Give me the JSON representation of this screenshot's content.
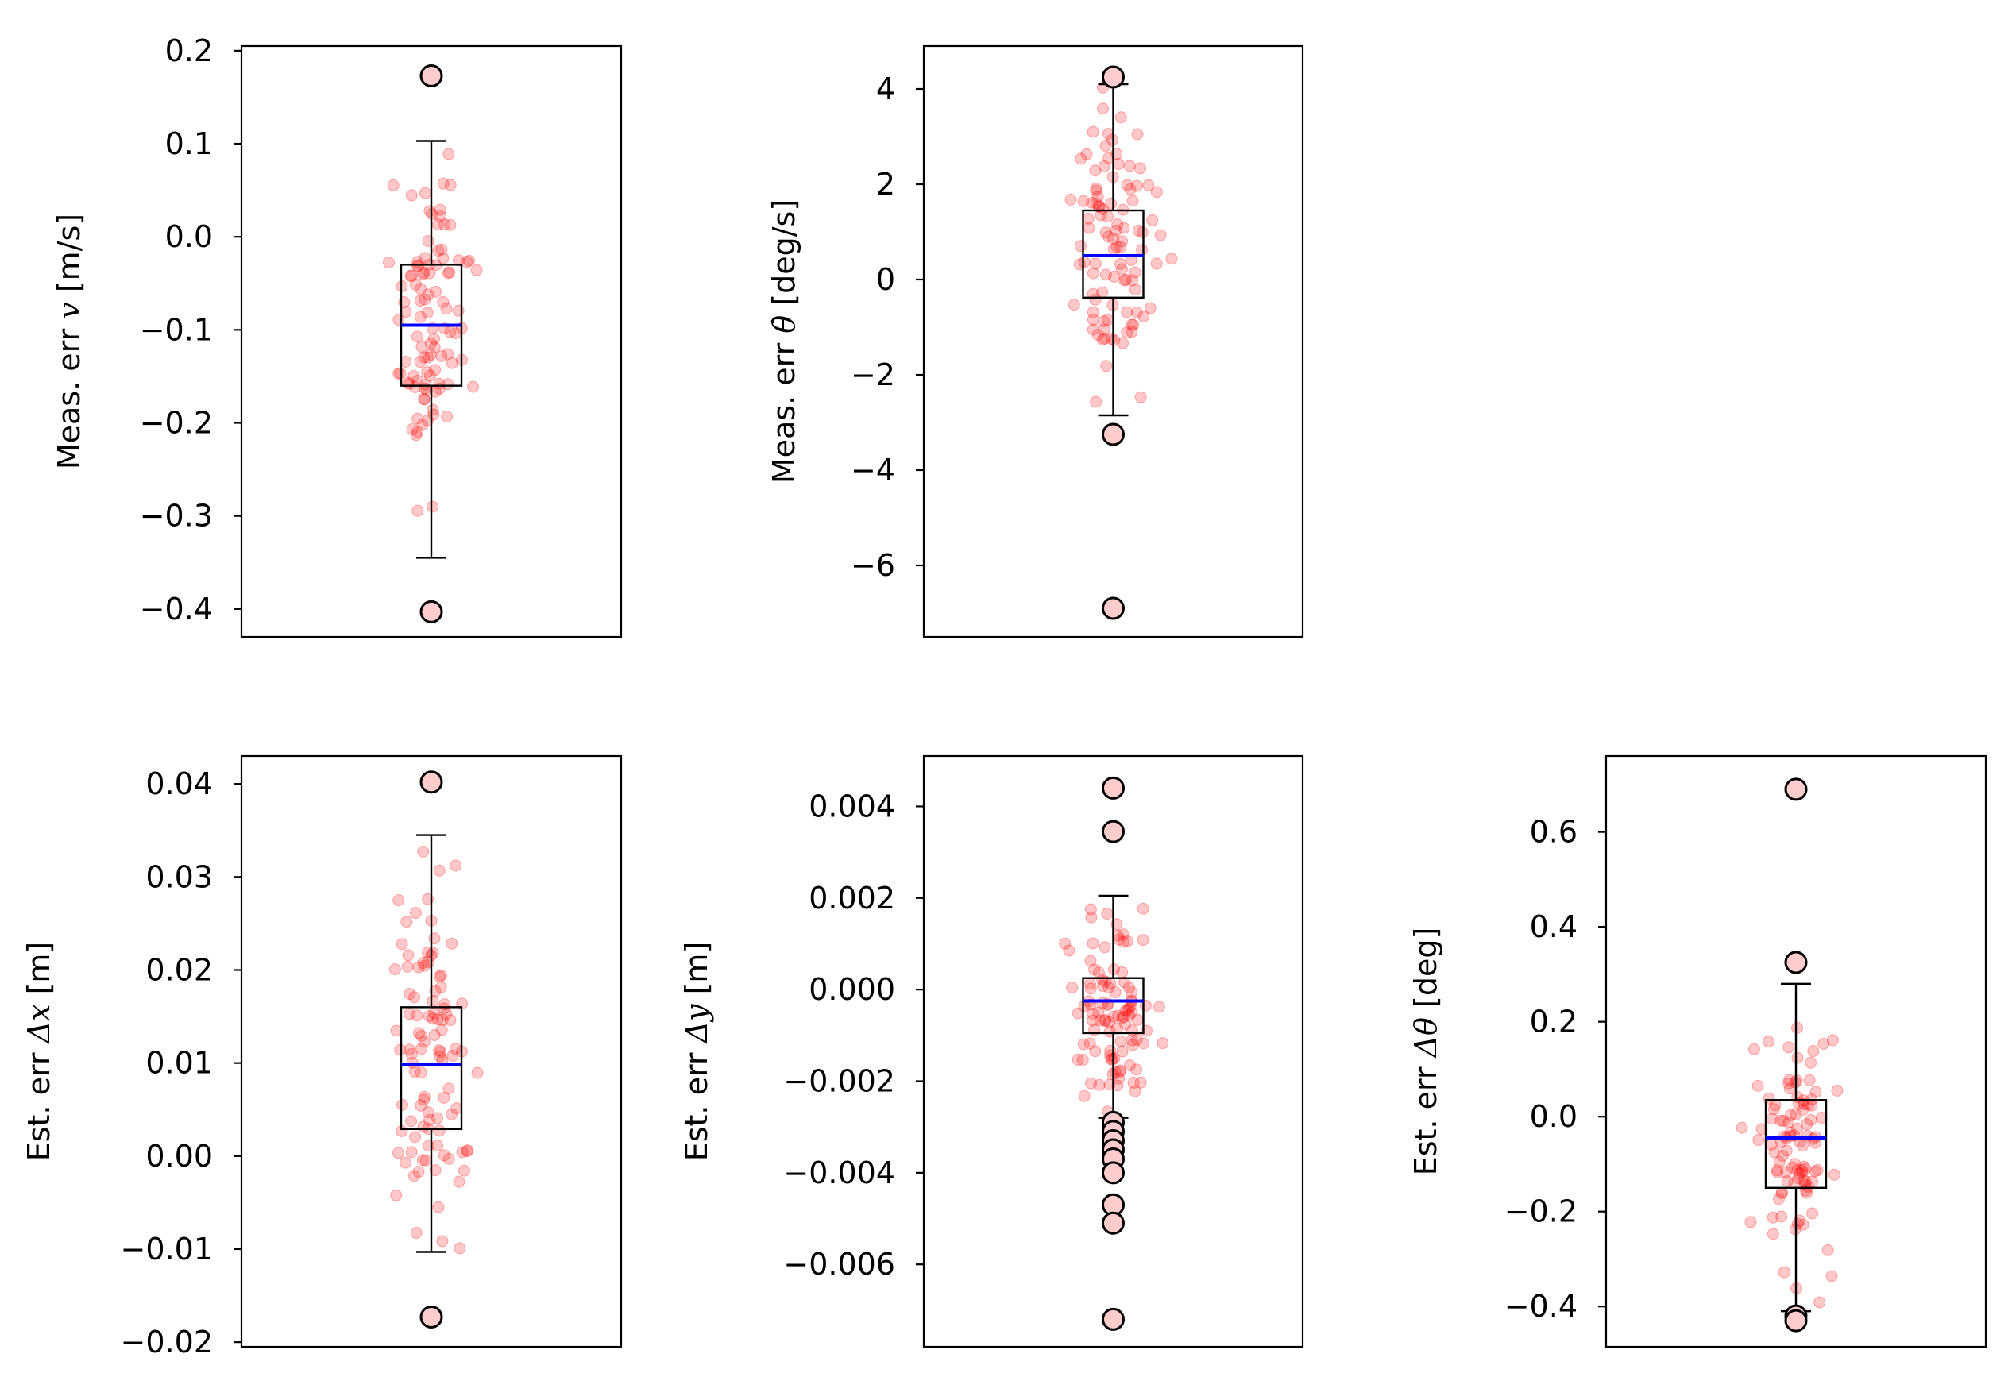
{
  "style": {
    "jitter_color": "#ff0000",
    "median_color": "#0000ff",
    "box_color": "#000000",
    "flier_face": "#ffcccc"
  },
  "chart_data": [
    {
      "type": "box",
      "ylabel_prefix": "Meas. err ",
      "ylabel_symbol": "v",
      "ylabel_unit": " [m/s]",
      "ylim": [
        -0.43,
        0.205
      ],
      "yticks": [
        0.2,
        0.1,
        0.0,
        -0.1,
        -0.2,
        -0.3,
        -0.4
      ],
      "ytick_labels": [
        "0.2",
        "0.1",
        "0.0",
        "−0.1",
        "−0.2",
        "−0.3",
        "−0.4"
      ],
      "median": -0.095,
      "q1": -0.16,
      "q3": -0.03,
      "whisker_low": -0.345,
      "whisker_high": 0.103,
      "fliers": [
        0.173,
        -0.403
      ],
      "jitter": {
        "count": 100,
        "spread": 0.05,
        "center": -0.08,
        "sd": 0.085,
        "seed": 11
      }
    },
    {
      "type": "box",
      "ylabel_prefix": "Meas. err ",
      "ylabel_symbol": "θ̇",
      "ylabel_unit": " [deg/s]",
      "ylim": [
        -7.5,
        4.9
      ],
      "yticks": [
        4,
        2,
        0,
        -2,
        -4,
        -6
      ],
      "ytick_labels": [
        "4",
        "2",
        "0",
        "−2",
        "−4",
        "−6"
      ],
      "median": 0.5,
      "q1": -0.38,
      "q3": 1.45,
      "whisker_low": -2.85,
      "whisker_high": 4.1,
      "fliers": [
        4.25,
        -3.25,
        -6.9
      ],
      "jitter": {
        "count": 100,
        "spread": 0.05,
        "center": 0.5,
        "sd": 1.4,
        "seed": 23
      }
    },
    {
      "type": "box",
      "ylabel_prefix": "Est. err ",
      "ylabel_symbol": "Δx",
      "ylabel_unit": " [m]",
      "ylim": [
        -0.0205,
        0.043
      ],
      "yticks": [
        0.04,
        0.03,
        0.02,
        0.01,
        0.0,
        -0.01,
        -0.02
      ],
      "ytick_labels": [
        "0.04",
        "0.03",
        "0.02",
        "0.01",
        "0.00",
        "−0.01",
        "−0.02"
      ],
      "median": 0.0098,
      "q1": 0.0029,
      "q3": 0.016,
      "whisker_low": -0.0103,
      "whisker_high": 0.0345,
      "fliers": [
        0.0402,
        -0.0173
      ],
      "jitter": {
        "count": 100,
        "spread": 0.05,
        "center": 0.011,
        "sd": 0.0095,
        "seed": 37
      }
    },
    {
      "type": "box",
      "ylabel_prefix": "Est. err ",
      "ylabel_symbol": "Δy",
      "ylabel_unit": " [m]",
      "ylim": [
        -0.0078,
        0.0051
      ],
      "yticks": [
        0.004,
        0.002,
        0.0,
        -0.002,
        -0.004,
        -0.006
      ],
      "ytick_labels": [
        "0.004",
        "0.002",
        "0.000",
        "−0.002",
        "−0.004",
        "−0.006"
      ],
      "median": -0.00025,
      "q1": -0.00095,
      "q3": 0.00025,
      "whisker_low": -0.0028,
      "whisker_high": 0.00205,
      "fliers": [
        0.0044,
        0.00345,
        -0.0029,
        -0.0031,
        -0.0033,
        -0.0035,
        -0.0037,
        -0.004,
        -0.0047,
        -0.0051,
        -0.0072
      ],
      "jitter": {
        "count": 100,
        "spread": 0.05,
        "center": -0.0004,
        "sd": 0.0011,
        "seed": 41
      }
    },
    {
      "type": "box",
      "ylabel_prefix": "Est. err ",
      "ylabel_symbol": "Δθ",
      "ylabel_unit": " [deg]",
      "ylim": [
        -0.485,
        0.76
      ],
      "yticks": [
        0.6,
        0.4,
        0.2,
        0.0,
        -0.2,
        -0.4
      ],
      "ytick_labels": [
        "0.6",
        "0.4",
        "0.2",
        "0.0",
        "−0.2",
        "−0.4"
      ],
      "median": -0.045,
      "q1": -0.15,
      "q3": 0.035,
      "whisker_low": -0.41,
      "whisker_high": 0.28,
      "fliers": [
        0.69,
        0.325,
        -0.42,
        -0.43
      ],
      "jitter": {
        "count": 100,
        "spread": 0.05,
        "center": -0.04,
        "sd": 0.14,
        "seed": 53
      }
    }
  ]
}
